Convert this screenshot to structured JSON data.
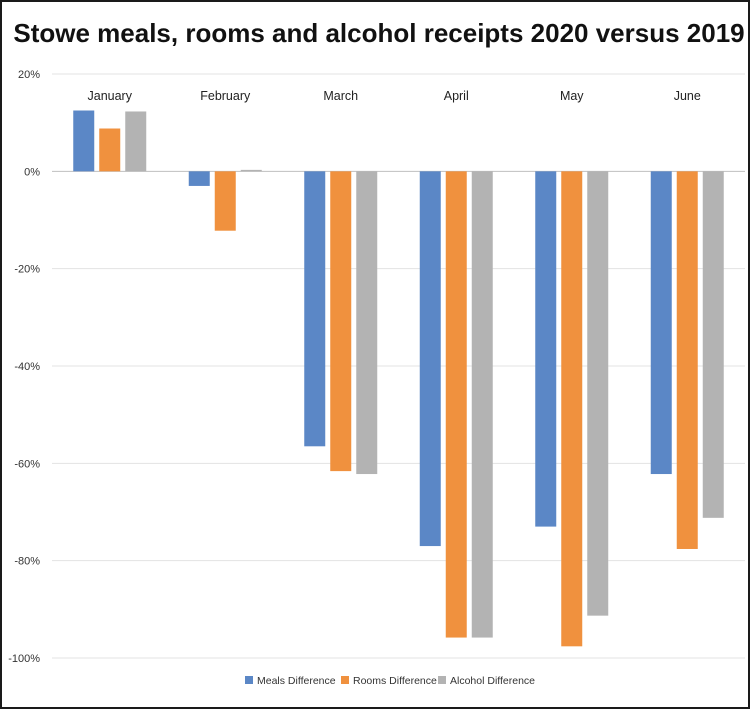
{
  "chart_data": {
    "type": "bar",
    "title": "Stowe meals, rooms and alcohol receipts 2020 versus 2019",
    "categories": [
      "January",
      "February",
      "March",
      "April",
      "May",
      "June"
    ],
    "series": [
      {
        "name": "Meals Difference",
        "color": "#5b87c6",
        "values": [
          12.5,
          -3,
          -56.5,
          -77,
          -73,
          -62.2
        ]
      },
      {
        "name": "Rooms Difference",
        "color": "#f0913e",
        "values": [
          8.8,
          -12.2,
          -61.6,
          -95.8,
          -97.6,
          -77.6
        ]
      },
      {
        "name": "Alcohol Difference",
        "color": "#b3b3b3",
        "values": [
          12.3,
          0.3,
          -62.2,
          -95.8,
          -91.3,
          -71.2
        ]
      }
    ],
    "ylim": [
      -100,
      20
    ],
    "yticks": [
      20,
      0,
      -20,
      -40,
      -60,
      -80,
      -100
    ],
    "ytick_labels": [
      "20%",
      "0%",
      "-20%",
      "-40%",
      "-60%",
      "-80%",
      "-100%"
    ],
    "grid": true,
    "legend_position": "bottom"
  }
}
